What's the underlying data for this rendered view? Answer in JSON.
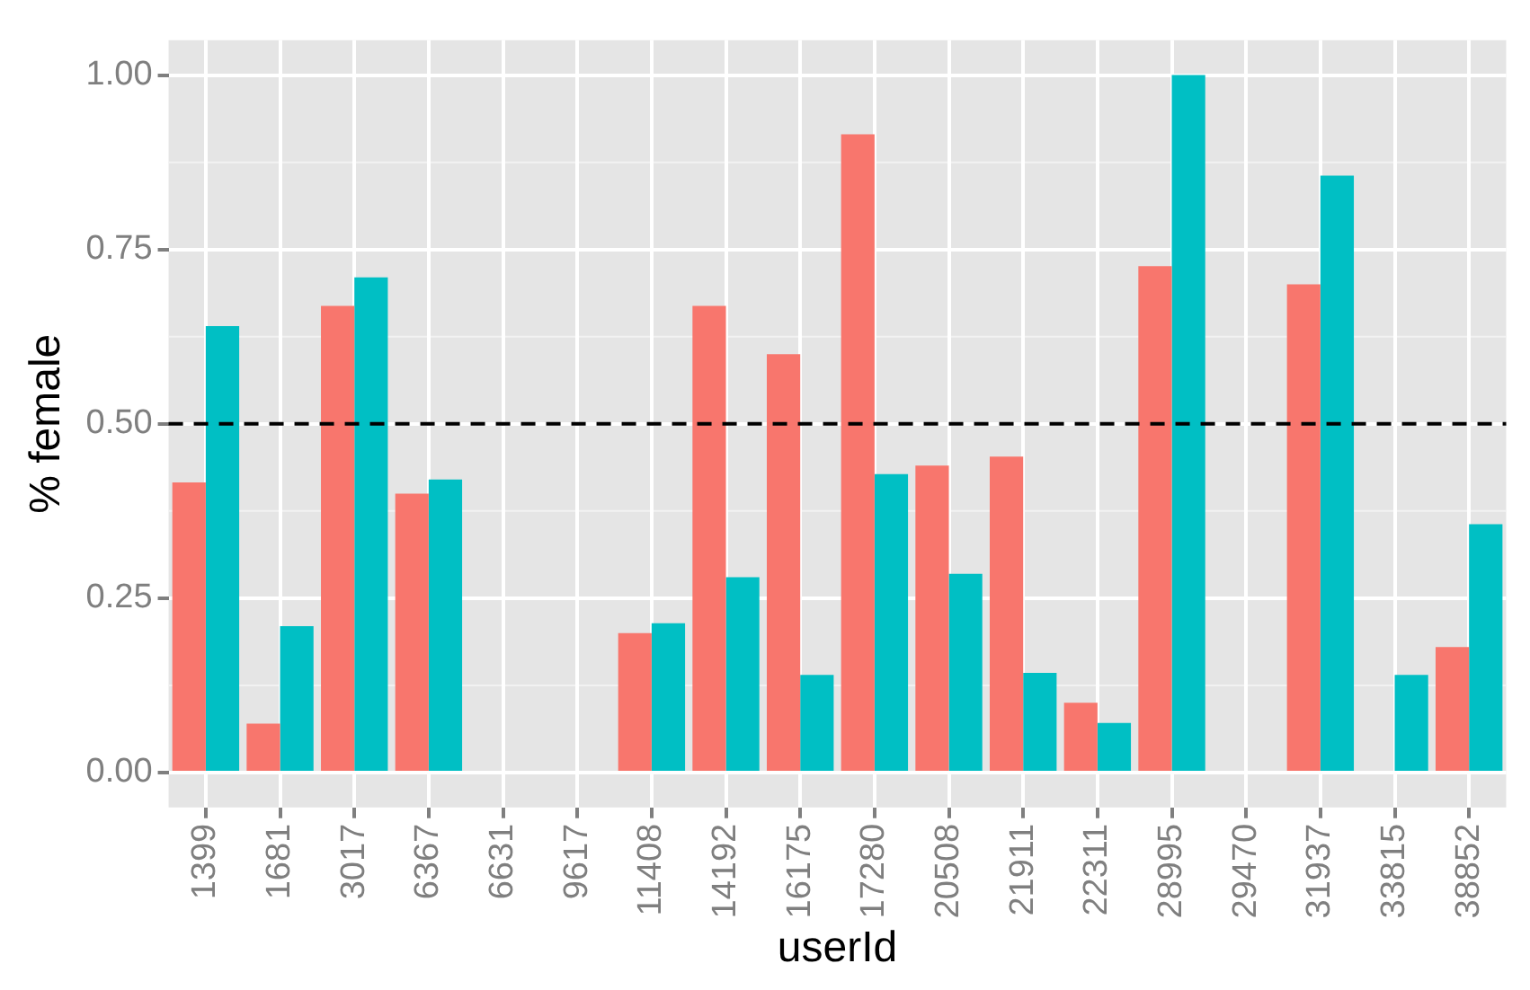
{
  "chart_data": {
    "type": "bar",
    "xlabel": "userId",
    "ylabel": "% female",
    "categories": [
      "1399",
      "1681",
      "3017",
      "6367",
      "6631",
      "9617",
      "11408",
      "14192",
      "16175",
      "17280",
      "20508",
      "21911",
      "22311",
      "28995",
      "29470",
      "31937",
      "33815",
      "38852"
    ],
    "series": [
      {
        "color": "#f8766d",
        "values": [
          0.416,
          0.07,
          0.669,
          0.4,
          null,
          null,
          0.2,
          0.669,
          0.6,
          0.915,
          0.44,
          0.453,
          0.1,
          0.726,
          null,
          0.7,
          null,
          0.18
        ]
      },
      {
        "color": "#00bfc4",
        "values": [
          0.64,
          0.21,
          0.71,
          0.42,
          null,
          null,
          0.214,
          0.28,
          0.14,
          0.428,
          0.285,
          0.143,
          0.071,
          1.0,
          null,
          0.856,
          0.14,
          0.356
        ]
      }
    ],
    "ylim": [
      -0.05,
      1.05
    ],
    "yticks": [
      {
        "value": 0,
        "label": "0.00"
      },
      {
        "value": 0.25,
        "label": "0.25"
      },
      {
        "value": 0.5,
        "label": "0.50"
      },
      {
        "value": 0.75,
        "label": "0.75"
      },
      {
        "value": 1,
        "label": "1.00"
      }
    ],
    "ref_lines": [
      {
        "axis": "y",
        "value": 0.5,
        "color": "#000000",
        "line_style": "dashed"
      }
    ],
    "grid": true,
    "legend": false
  }
}
